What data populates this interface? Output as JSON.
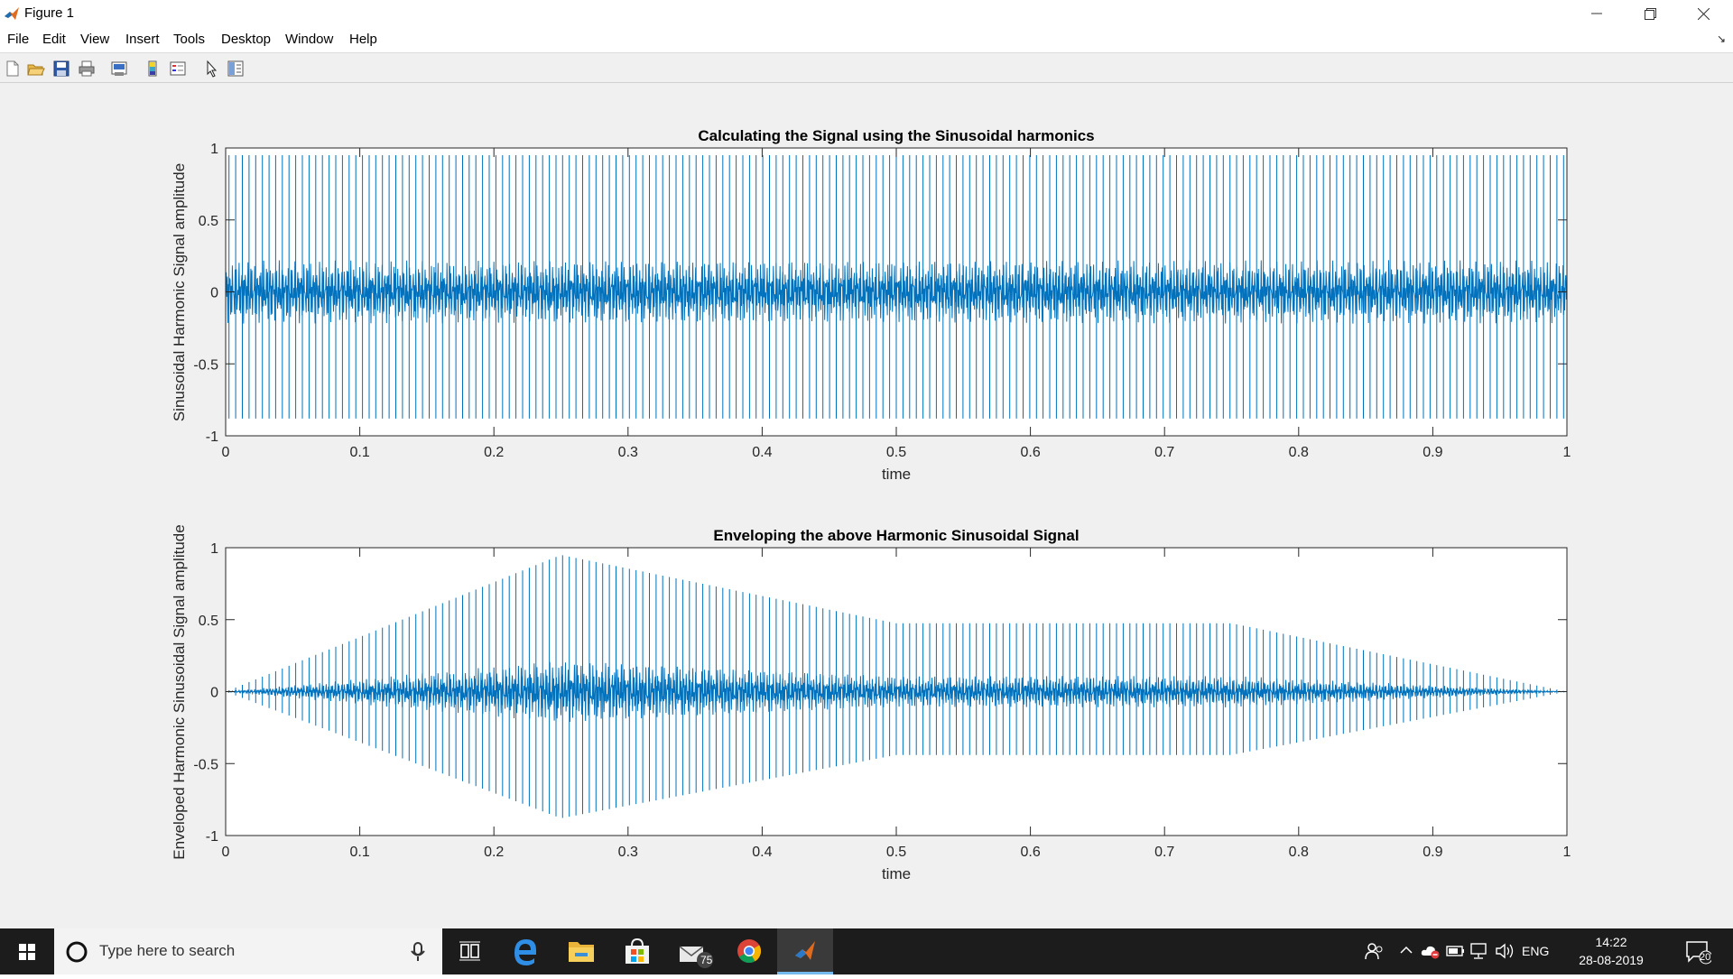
{
  "window": {
    "title": "Figure 1"
  },
  "menu": [
    "File",
    "Edit",
    "View",
    "Insert",
    "Tools",
    "Desktop",
    "Window",
    "Help"
  ],
  "plots": [
    {
      "title": "Calculating the Signal using the Sinusoidal harmonics",
      "xlabel": "time",
      "ylabel": "Sinusoidal Harmonic Signal amplitude"
    },
    {
      "title": "Enveloping the above Harmonic Sinusoidal Signal",
      "xlabel": "time",
      "ylabel": "Enveloped Harmonic Sinusoidal Signal amplitude"
    }
  ],
  "axes": {
    "xticks": [
      "0",
      "0.1",
      "0.2",
      "0.3",
      "0.4",
      "0.5",
      "0.6",
      "0.7",
      "0.8",
      "0.9",
      "1"
    ],
    "yticks": [
      "1",
      "0.5",
      "0",
      "-0.5",
      "-1"
    ]
  },
  "chart_data": [
    {
      "type": "line",
      "title": "Calculating the Signal using the Sinusoidal harmonics",
      "xlabel": "time",
      "ylabel": "Sinusoidal Harmonic Signal amplitude",
      "xlim": [
        0,
        1
      ],
      "ylim": [
        -1,
        1
      ],
      "grid": false,
      "series": [
        {
          "color": "#0072BD",
          "spike_count": 200,
          "peak_max": 0.95,
          "peak_min": -0.88,
          "band_amplitude": 0.22
        }
      ]
    },
    {
      "type": "line",
      "title": "Enveloping the above Harmonic Sinusoidal Signal",
      "xlabel": "time",
      "ylabel": "Enveloped Harmonic Sinusoidal Signal amplitude",
      "xlim": [
        0,
        1
      ],
      "ylim": [
        -1,
        1
      ],
      "grid": false,
      "envelope": {
        "t": [
          0,
          0.25,
          0.5,
          0.75,
          1
        ],
        "a": [
          0,
          1,
          0.5,
          0.5,
          0
        ]
      },
      "series": [
        {
          "color": "#0072BD",
          "spike_count": 200,
          "peak_max": 0.95,
          "peak_min": -0.88,
          "band_amplitude": 0.22
        }
      ]
    }
  ],
  "taskbar": {
    "search_placeholder": "Type here to search",
    "language": "ENG",
    "time": "14:22",
    "date": "28-08-2019",
    "mail_badge": "75",
    "notifications": "20"
  },
  "colors": {
    "line": "#0072BD",
    "figure_bg": "#f0f0f0",
    "taskbar_bg": "#1c1c1c"
  }
}
